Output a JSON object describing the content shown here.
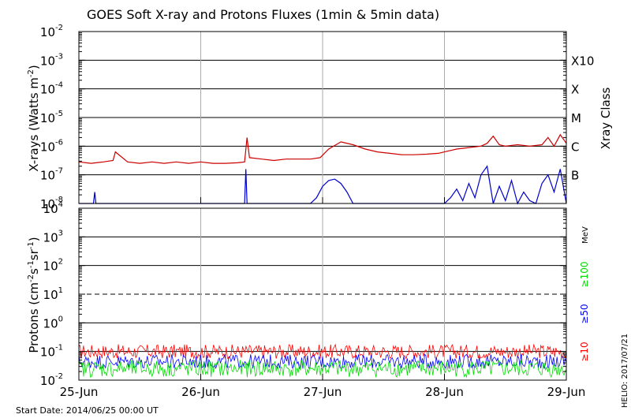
{
  "chart_data": {
    "type": "line",
    "title": "GOES Soft X-ray and Protons Fluxes   (1min & 5min data)",
    "start_date": "Start Date: 2014/06/25 00:00 UT",
    "credit": "HELIO: 2017/07/21",
    "x_ticks": [
      "25-Jun",
      "26-Jun",
      "27-Jun",
      "28-Jun",
      "29-Jun"
    ],
    "xrange_days": [
      0,
      4
    ],
    "xray_panel": {
      "ylabel_main": "X-rays (Watts m",
      "ylabel_exp": "-2",
      "ylabel_close": ")",
      "scale": "log",
      "ylim_exp": [
        -8,
        -2
      ],
      "y_ticks": [
        {
          "base": "10",
          "exp": "-8"
        },
        {
          "base": "10",
          "exp": "-7"
        },
        {
          "base": "10",
          "exp": "-6"
        },
        {
          "base": "10",
          "exp": "-5"
        },
        {
          "base": "10",
          "exp": "-4"
        },
        {
          "base": "10",
          "exp": "-3"
        },
        {
          "base": "10",
          "exp": "-2"
        }
      ],
      "class_axis_label": "Xray Class",
      "classes": [
        {
          "label": "B",
          "exp": -7
        },
        {
          "label": "C",
          "exp": -6
        },
        {
          "label": "M",
          "exp": -5
        },
        {
          "label": "X",
          "exp": -4
        },
        {
          "label": "X10",
          "exp": -3
        }
      ],
      "series": [
        {
          "color": "#cc0000",
          "x_days": [
            0,
            0.1,
            0.2,
            0.28,
            0.3,
            0.4,
            0.5,
            0.6,
            0.7,
            0.8,
            0.9,
            1.0,
            1.1,
            1.2,
            1.3,
            1.36,
            1.38,
            1.4,
            1.5,
            1.6,
            1.7,
            1.8,
            1.9,
            1.98,
            2.05,
            2.15,
            2.25,
            2.35,
            2.45,
            2.55,
            2.65,
            2.75,
            2.85,
            2.95,
            3.0,
            3.05,
            3.1,
            3.2,
            3.3,
            3.35,
            3.4,
            3.45,
            3.5,
            3.6,
            3.7,
            3.8,
            3.85,
            3.9,
            3.95,
            4.0
          ],
          "flux_exp": [
            -6.55,
            -6.6,
            -6.55,
            -6.5,
            -6.2,
            -6.55,
            -6.6,
            -6.55,
            -6.6,
            -6.55,
            -6.6,
            -6.55,
            -6.6,
            -6.6,
            -6.58,
            -6.55,
            -5.7,
            -6.4,
            -6.45,
            -6.5,
            -6.45,
            -6.45,
            -6.45,
            -6.4,
            -6.1,
            -5.85,
            -5.95,
            -6.1,
            -6.2,
            -6.25,
            -6.3,
            -6.3,
            -6.28,
            -6.25,
            -6.2,
            -6.15,
            -6.1,
            -6.05,
            -6.0,
            -5.9,
            -5.65,
            -5.95,
            -6.0,
            -5.95,
            -6.0,
            -5.95,
            -5.7,
            -6.0,
            -5.6,
            -5.9
          ]
        },
        {
          "color": "#0000cc",
          "x_days": [
            0,
            0.12,
            0.13,
            0.14,
            0.4,
            1.36,
            1.37,
            1.38,
            1.9,
            1.95,
            2.0,
            2.05,
            2.1,
            2.15,
            2.2,
            2.25,
            3.0,
            3.05,
            3.1,
            3.15,
            3.2,
            3.25,
            3.3,
            3.35,
            3.4,
            3.45,
            3.5,
            3.55,
            3.6,
            3.65,
            3.7,
            3.75,
            3.8,
            3.85,
            3.9,
            3.95,
            4.0
          ],
          "flux_exp": [
            -8,
            -8,
            -7.6,
            -8,
            -8,
            -8,
            -6.8,
            -8,
            -8,
            -7.8,
            -7.4,
            -7.2,
            -7.15,
            -7.3,
            -7.6,
            -8,
            -8,
            -7.8,
            -7.5,
            -7.9,
            -7.3,
            -7.8,
            -7.0,
            -6.7,
            -8,
            -7.4,
            -7.9,
            -7.2,
            -8,
            -7.6,
            -7.9,
            -8,
            -7.3,
            -7.0,
            -7.6,
            -6.8,
            -8
          ]
        }
      ]
    },
    "proton_panel": {
      "ylabel_main": "Protons (cm",
      "ylabel_exp1": "-2",
      "ylabel_mid": "s",
      "ylabel_exp2": "-1",
      "ylabel_mid2": "sr",
      "ylabel_exp3": "-1",
      "ylabel_close": ")",
      "scale": "log",
      "ylim_exp": [
        -2,
        4
      ],
      "y_ticks": [
        {
          "base": "10",
          "exp": "-2"
        },
        {
          "base": "10",
          "exp": "-1"
        },
        {
          "base": "10",
          "exp": "0"
        },
        {
          "base": "10",
          "exp": "1"
        },
        {
          "base": "10",
          "exp": "2"
        },
        {
          "base": "10",
          "exp": "3"
        },
        {
          "base": "10",
          "exp": "4"
        }
      ],
      "energy_unit": "MeV",
      "threshold_exp": 1,
      "series": [
        {
          "name": "≥10",
          "color": "#ff0000",
          "typical_exp": -1.0,
          "spread": 0.25
        },
        {
          "name": "≥50",
          "color": "#0000ff",
          "typical_exp": -1.35,
          "spread": 0.25
        },
        {
          "name": "≥100",
          "color": "#00dd00",
          "typical_exp": -1.6,
          "spread": 0.3
        }
      ]
    }
  }
}
